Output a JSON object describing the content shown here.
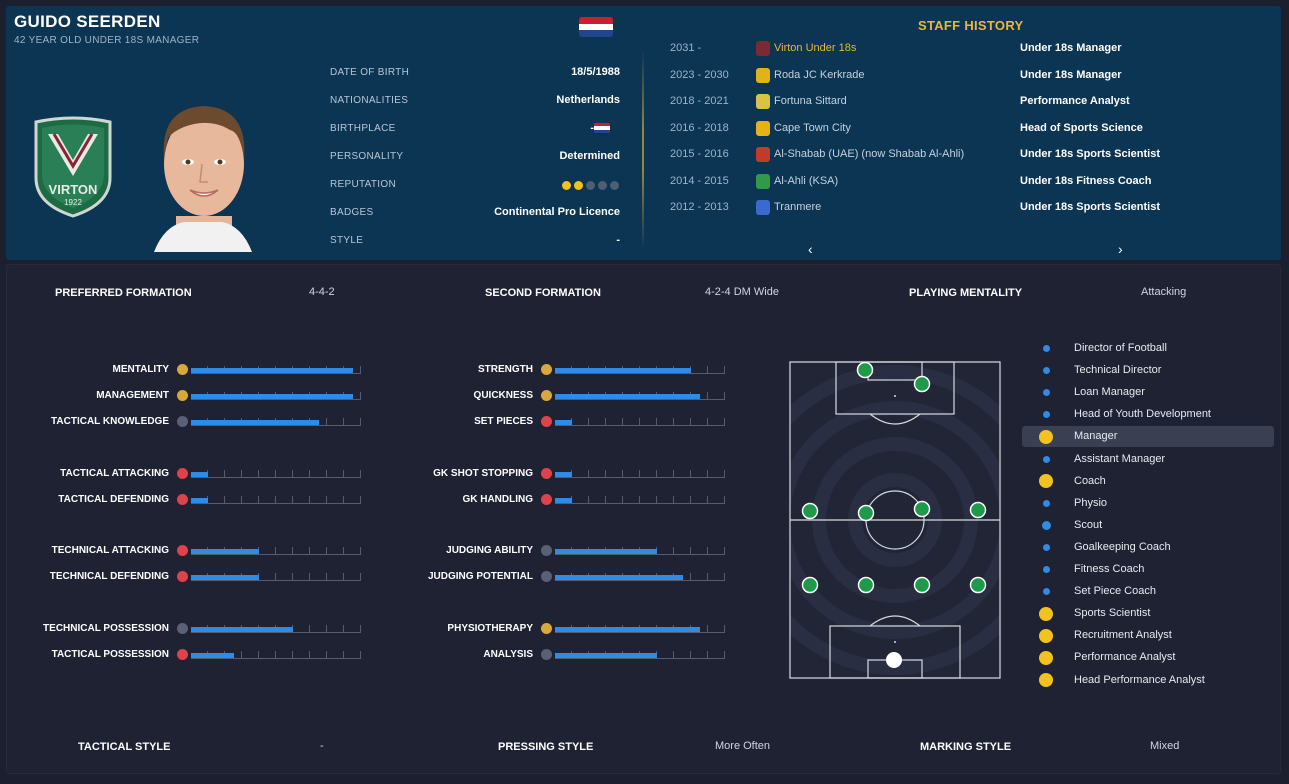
{
  "header": {
    "name": "GUIDO SEERDEN",
    "subtitle": "42 YEAR OLD UNDER 18S MANAGER",
    "crest_text": "VIRTON",
    "crest_year": "1922"
  },
  "profile": [
    {
      "label": "DATE OF BIRTH",
      "value": "18/5/1988"
    },
    {
      "label": "NATIONALITIES",
      "value": "Netherlands"
    },
    {
      "label": "BIRTHPLACE",
      "value": "-"
    },
    {
      "label": "PERSONALITY",
      "value": "Determined"
    },
    {
      "label": "REPUTATION",
      "value": ""
    },
    {
      "label": "BADGES",
      "value": "Continental Pro Licence"
    },
    {
      "label": "STYLE",
      "value": "-"
    }
  ],
  "reputation_stars": {
    "filled": 2,
    "total": 5
  },
  "staff_history": {
    "title": "STAFF HISTORY",
    "rows": [
      {
        "years": "2031 -",
        "club": "Virton Under 18s",
        "role": "Under 18s Manager",
        "color": "#7a2a32",
        "current": true
      },
      {
        "years": "2023 - 2030",
        "club": "Roda JC Kerkrade",
        "role": "Under 18s Manager",
        "color": "#e0b21c",
        "current": false
      },
      {
        "years": "2018 - 2021",
        "club": "Fortuna Sittard",
        "role": "Performance Analyst",
        "color": "#d9c24a",
        "current": false
      },
      {
        "years": "2016 - 2018",
        "club": "Cape Town City",
        "role": "Head of Sports Science",
        "color": "#e6b21a",
        "current": false
      },
      {
        "years": "2015 - 2016",
        "club": "Al-Shabab (UAE) (now Shabab Al-Ahli)",
        "role": "Under 18s Sports Scientist",
        "color": "#c23a2a",
        "current": false
      },
      {
        "years": "2014 - 2015",
        "club": "Al-Ahli (KSA)",
        "role": "Under 18s Fitness Coach",
        "color": "#2f9a4a",
        "current": false
      },
      {
        "years": "2012 - 2013",
        "club": "Tranmere",
        "role": "Under 18s Sports Scientist",
        "color": "#3a6ad0",
        "current": false
      }
    ],
    "prev": "‹",
    "next": "›"
  },
  "formations": {
    "preferred_label": "PREFERRED FORMATION",
    "preferred_value": "4-4-2",
    "second_label": "SECOND FORMATION",
    "second_value": "4-2-4 DM Wide",
    "mentality_label": "PLAYING MENTALITY",
    "mentality_value": "Attacking"
  },
  "attributes_left": [
    {
      "label": "MENTALITY",
      "value": 19,
      "icon_color": "#d8a83a"
    },
    {
      "label": "MANAGEMENT",
      "value": 19,
      "icon_color": "#d8a83a"
    },
    {
      "label": "TACTICAL KNOWLEDGE",
      "value": 15,
      "icon_color": "#5a6075"
    },
    {
      "label": "TACTICAL ATTACKING",
      "value": 2,
      "icon_color": "#e0424a"
    },
    {
      "label": "TACTICAL DEFENDING",
      "value": 2,
      "icon_color": "#e0424a"
    },
    {
      "label": "TECHNICAL ATTACKING",
      "value": 8,
      "icon_color": "#e0424a"
    },
    {
      "label": "TECHNICAL DEFENDING",
      "value": 8,
      "icon_color": "#e0424a"
    },
    {
      "label": "TECHNICAL POSSESSION",
      "value": 12,
      "icon_color": "#5a6075"
    },
    {
      "label": "TACTICAL POSSESSION",
      "value": 5,
      "icon_color": "#e0424a"
    }
  ],
  "attributes_right": [
    {
      "label": "STRENGTH",
      "value": 16,
      "icon_color": "#d8a83a"
    },
    {
      "label": "QUICKNESS",
      "value": 17,
      "icon_color": "#d8a83a"
    },
    {
      "label": "SET PIECES",
      "value": 2,
      "icon_color": "#e0424a"
    },
    {
      "label": "GK SHOT STOPPING",
      "value": 2,
      "icon_color": "#e0424a"
    },
    {
      "label": "GK HANDLING",
      "value": 2,
      "icon_color": "#e0424a"
    },
    {
      "label": "JUDGING ABILITY",
      "value": 12,
      "icon_color": "#5a6075"
    },
    {
      "label": "JUDGING POTENTIAL",
      "value": 15,
      "icon_color": "#5a6075"
    },
    {
      "label": "PHYSIOTHERAPY",
      "value": 17,
      "icon_color": "#d8a83a"
    },
    {
      "label": "ANALYSIS",
      "value": 12,
      "icon_color": "#5a6075"
    }
  ],
  "attribute_max": 20,
  "roles": [
    {
      "label": "Director of Football",
      "dot": "small-blue"
    },
    {
      "label": "Technical Director",
      "dot": "small-blue"
    },
    {
      "label": "Loan Manager",
      "dot": "small-blue"
    },
    {
      "label": "Head of Youth Development",
      "dot": "small-blue"
    },
    {
      "label": "Manager",
      "dot": "big-yellow",
      "selected": true
    },
    {
      "label": "Assistant Manager",
      "dot": "small-blue"
    },
    {
      "label": "Coach",
      "dot": "big-yellow"
    },
    {
      "label": "Physio",
      "dot": "small-blue"
    },
    {
      "label": "Scout",
      "dot": "mid-blue"
    },
    {
      "label": "Goalkeeping Coach",
      "dot": "small-blue"
    },
    {
      "label": "Fitness Coach",
      "dot": "small-blue"
    },
    {
      "label": "Set Piece Coach",
      "dot": "small-blue"
    },
    {
      "label": "Sports Scientist",
      "dot": "big-yellow"
    },
    {
      "label": "Recruitment Analyst",
      "dot": "big-yellow"
    },
    {
      "label": "Performance Analyst",
      "dot": "big-yellow"
    },
    {
      "label": "Head Performance Analyst",
      "dot": "big-yellow"
    }
  ],
  "styles": {
    "tactical_label": "TACTICAL STYLE",
    "tactical_value": "-",
    "pressing_label": "PRESSING STYLE",
    "pressing_value": "More Often",
    "marking_label": "MARKING STYLE",
    "marking_value": "Mixed"
  },
  "colors": {
    "accent": "#2e8be6",
    "gold": "#e6b93a",
    "player": "#1e9a4a"
  }
}
